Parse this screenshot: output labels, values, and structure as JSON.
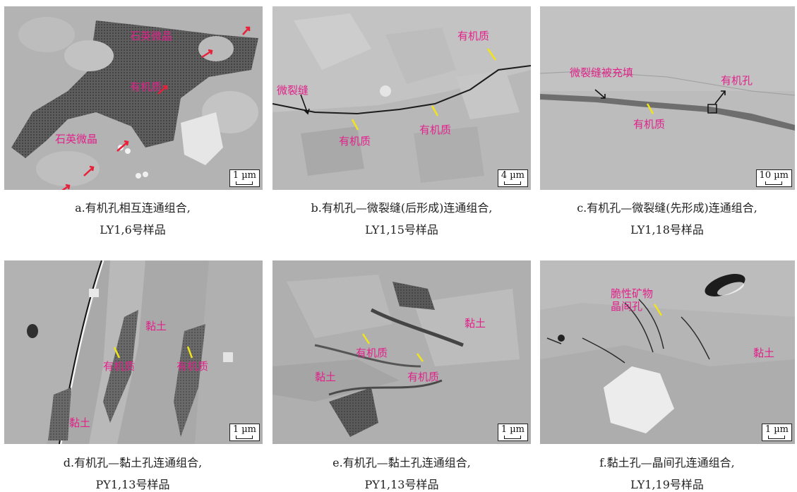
{
  "panels": [
    {
      "id": "a",
      "caption_line1": "a.有机孔相互连通组合,",
      "caption_line2": "LY1,6号样品",
      "scale": "1 µm",
      "labels": [
        "石英微晶",
        "有机质",
        "石英微晶"
      ]
    },
    {
      "id": "b",
      "caption_line1": "b.有机孔—微裂缝(后形成)连通组合,",
      "caption_line2": "LY1,15号样品",
      "scale": "4 µm",
      "labels": [
        "有机质",
        "微裂缝",
        "有机质",
        "有机质"
      ]
    },
    {
      "id": "c",
      "caption_line1": "c.有机孔—微裂缝(先形成)连通组合,",
      "caption_line2": "LY1,18号样品",
      "scale": "10 µm",
      "labels": [
        "微裂缝被充填",
        "有机孔",
        "有机质"
      ]
    },
    {
      "id": "d",
      "caption_line1": "d.有机孔—黏土孔连通组合,",
      "caption_line2": "PY1,13号样品",
      "scale": "1 µm",
      "labels": [
        "黏土",
        "有机质",
        "有机质",
        "黏土"
      ]
    },
    {
      "id": "e",
      "caption_line1": "e.有机孔—黏土孔连通组合,",
      "caption_line2": "PY1,13号样品",
      "scale": "1 µm",
      "labels": [
        "黏土",
        "有机质",
        "有机质",
        "黏土"
      ]
    },
    {
      "id": "f",
      "caption_line1": "f.黏土孔—晶间孔连通组合,",
      "caption_line2": "LY1,19号样品",
      "scale": "1 µm",
      "labels": [
        "脆性矿物",
        "晶间孔",
        "黏土"
      ]
    }
  ],
  "colors": {
    "annotation": "#e0228a",
    "pointer_red": "#e8213a",
    "pointer_yellow": "#f2e41a",
    "pointer_black": "#111111"
  }
}
